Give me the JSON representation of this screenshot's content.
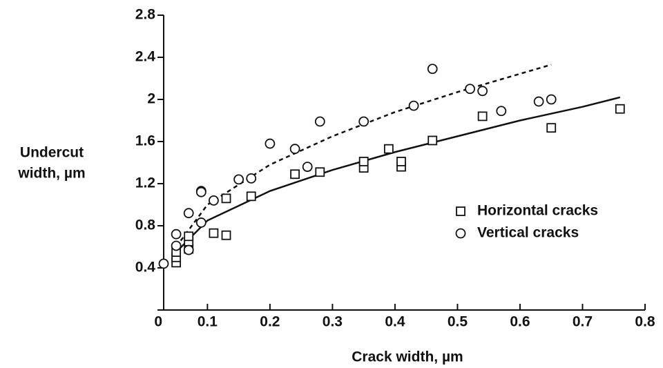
{
  "chart_data": {
    "type": "scatter",
    "xlabel": "Crack width, µm",
    "ylabel": [
      "Undercut",
      "width, µm"
    ],
    "xlim": [
      0.03,
      0.8
    ],
    "ylim": [
      0,
      2.8
    ],
    "xticks": [
      0.1,
      0.2,
      0.3,
      0.4,
      0.5,
      0.6,
      0.7,
      0.8
    ],
    "yticks": [
      0,
      0.4,
      0.8,
      1.2,
      1.6,
      2.0,
      2.4,
      2.8
    ],
    "legend": "right",
    "series": [
      {
        "name": "Horizontal cracks",
        "marker": "square",
        "color": "#111",
        "x": [
          0.05,
          0.05,
          0.05,
          0.07,
          0.07,
          0.07,
          0.11,
          0.13,
          0.13,
          0.17,
          0.24,
          0.28,
          0.35,
          0.35,
          0.39,
          0.41,
          0.41,
          0.46,
          0.54,
          0.65,
          0.76
        ],
        "values": [
          0.45,
          0.5,
          0.55,
          0.58,
          0.65,
          0.7,
          0.73,
          0.71,
          1.06,
          1.08,
          1.29,
          1.31,
          1.35,
          1.41,
          1.53,
          1.36,
          1.41,
          1.61,
          1.84,
          1.73,
          1.91
        ]
      },
      {
        "name": "Vertical cracks",
        "marker": "circle",
        "color": "#111",
        "x": [
          0.03,
          0.05,
          0.05,
          0.07,
          0.07,
          0.09,
          0.09,
          0.09,
          0.11,
          0.15,
          0.17,
          0.2,
          0.24,
          0.26,
          0.28,
          0.35,
          0.43,
          0.46,
          0.52,
          0.54,
          0.57,
          0.63,
          0.65
        ],
        "values": [
          0.44,
          0.72,
          0.61,
          0.92,
          0.57,
          0.83,
          1.13,
          1.12,
          1.04,
          1.24,
          1.25,
          1.58,
          1.53,
          1.36,
          1.79,
          1.79,
          1.94,
          2.29,
          2.1,
          2.08,
          1.89,
          1.98,
          2.0
        ]
      }
    ],
    "curves": [
      {
        "style": "solid",
        "color": "#111",
        "x": [
          0.05,
          0.1,
          0.2,
          0.3,
          0.4,
          0.5,
          0.6,
          0.7,
          0.76
        ],
        "values": [
          0.55,
          0.85,
          1.13,
          1.33,
          1.5,
          1.65,
          1.8,
          1.93,
          2.02
        ]
      },
      {
        "style": "dashed",
        "color": "#111",
        "x": [
          0.05,
          0.1,
          0.2,
          0.3,
          0.4,
          0.5,
          0.65
        ],
        "values": [
          0.6,
          1.0,
          1.38,
          1.65,
          1.88,
          2.07,
          2.33
        ]
      }
    ]
  }
}
